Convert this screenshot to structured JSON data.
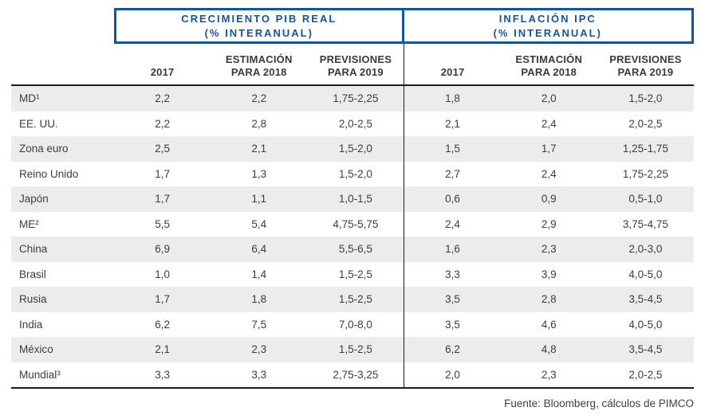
{
  "colors": {
    "accent_blue": "#15549A",
    "line_dark": "#1D1D1B",
    "row_alt_gray": "#ECECEC",
    "text": "#3D3D3D"
  },
  "chart_data": {
    "type": "table",
    "column_groups": [
      {
        "line1": "CRECIMIENTO PIB REAL",
        "line2": "(% INTERANUAL)",
        "span": 3
      },
      {
        "line1": "INFLACIÓN IPC",
        "line2": "(% INTERANUAL)",
        "span": 3
      }
    ],
    "columns": [
      {
        "line1": "",
        "line2": "2017"
      },
      {
        "line1": "ESTIMACIÓN",
        "line2": "PARA 2018"
      },
      {
        "line1": "PREVISIONES",
        "line2": "PARA 2019"
      },
      {
        "line1": "",
        "line2": "2017"
      },
      {
        "line1": "ESTIMACIÓN",
        "line2": "PARA 2018"
      },
      {
        "line1": "PREVISIONES",
        "line2": "PARA 2019"
      }
    ],
    "rows": [
      {
        "label": "MD¹",
        "values": [
          "2,2",
          "2,2",
          "1,75-2,25",
          "1,8",
          "2,0",
          "1,5-2,0"
        ]
      },
      {
        "label": "EE. UU.",
        "values": [
          "2,2",
          "2,8",
          "2,0-2,5",
          "2,1",
          "2,4",
          "2,0-2,5"
        ]
      },
      {
        "label": "Zona euro",
        "values": [
          "2,5",
          "2,1",
          "1,5-2,0",
          "1,5",
          "1,7",
          "1,25-1,75"
        ]
      },
      {
        "label": "Reino Unido",
        "values": [
          "1,7",
          "1,3",
          "1,5-2,0",
          "2,7",
          "2,4",
          "1,75-2,25"
        ]
      },
      {
        "label": "Japón",
        "values": [
          "1,7",
          "1,1",
          "1,0-1,5",
          "0,6",
          "0,9",
          "0,5-1,0"
        ]
      },
      {
        "label": "ME²",
        "values": [
          "5,5",
          "5,4",
          "4,75-5,75",
          "2,4",
          "2,9",
          "3,75-4,75"
        ]
      },
      {
        "label": "China",
        "values": [
          "6,9",
          "6,4",
          "5,5-6,5",
          "1,6",
          "2,3",
          "2,0-3,0"
        ]
      },
      {
        "label": "Brasil",
        "values": [
          "1,0",
          "1,4",
          "1,5-2,5",
          "3,3",
          "3,9",
          "4,0-5,0"
        ]
      },
      {
        "label": "Rusia",
        "values": [
          "1,7",
          "1,8",
          "1,5-2,5",
          "3,5",
          "2,8",
          "3,5-4,5"
        ]
      },
      {
        "label": "India",
        "values": [
          "6,2",
          "7,5",
          "7,0-8,0",
          "3,5",
          "4,6",
          "4,0-5,0"
        ]
      },
      {
        "label": "México",
        "values": [
          "2,1",
          "2,3",
          "1,5-2,5",
          "6,2",
          "4,8",
          "3,5-4,5"
        ]
      },
      {
        "label": "Mundial³",
        "values": [
          "3,3",
          "3,3",
          "2,75-3,25",
          "2,0",
          "2,3",
          "2,0-2,5"
        ]
      }
    ],
    "source": "Fuente: Bloomberg, cálculos de PIMCO"
  }
}
